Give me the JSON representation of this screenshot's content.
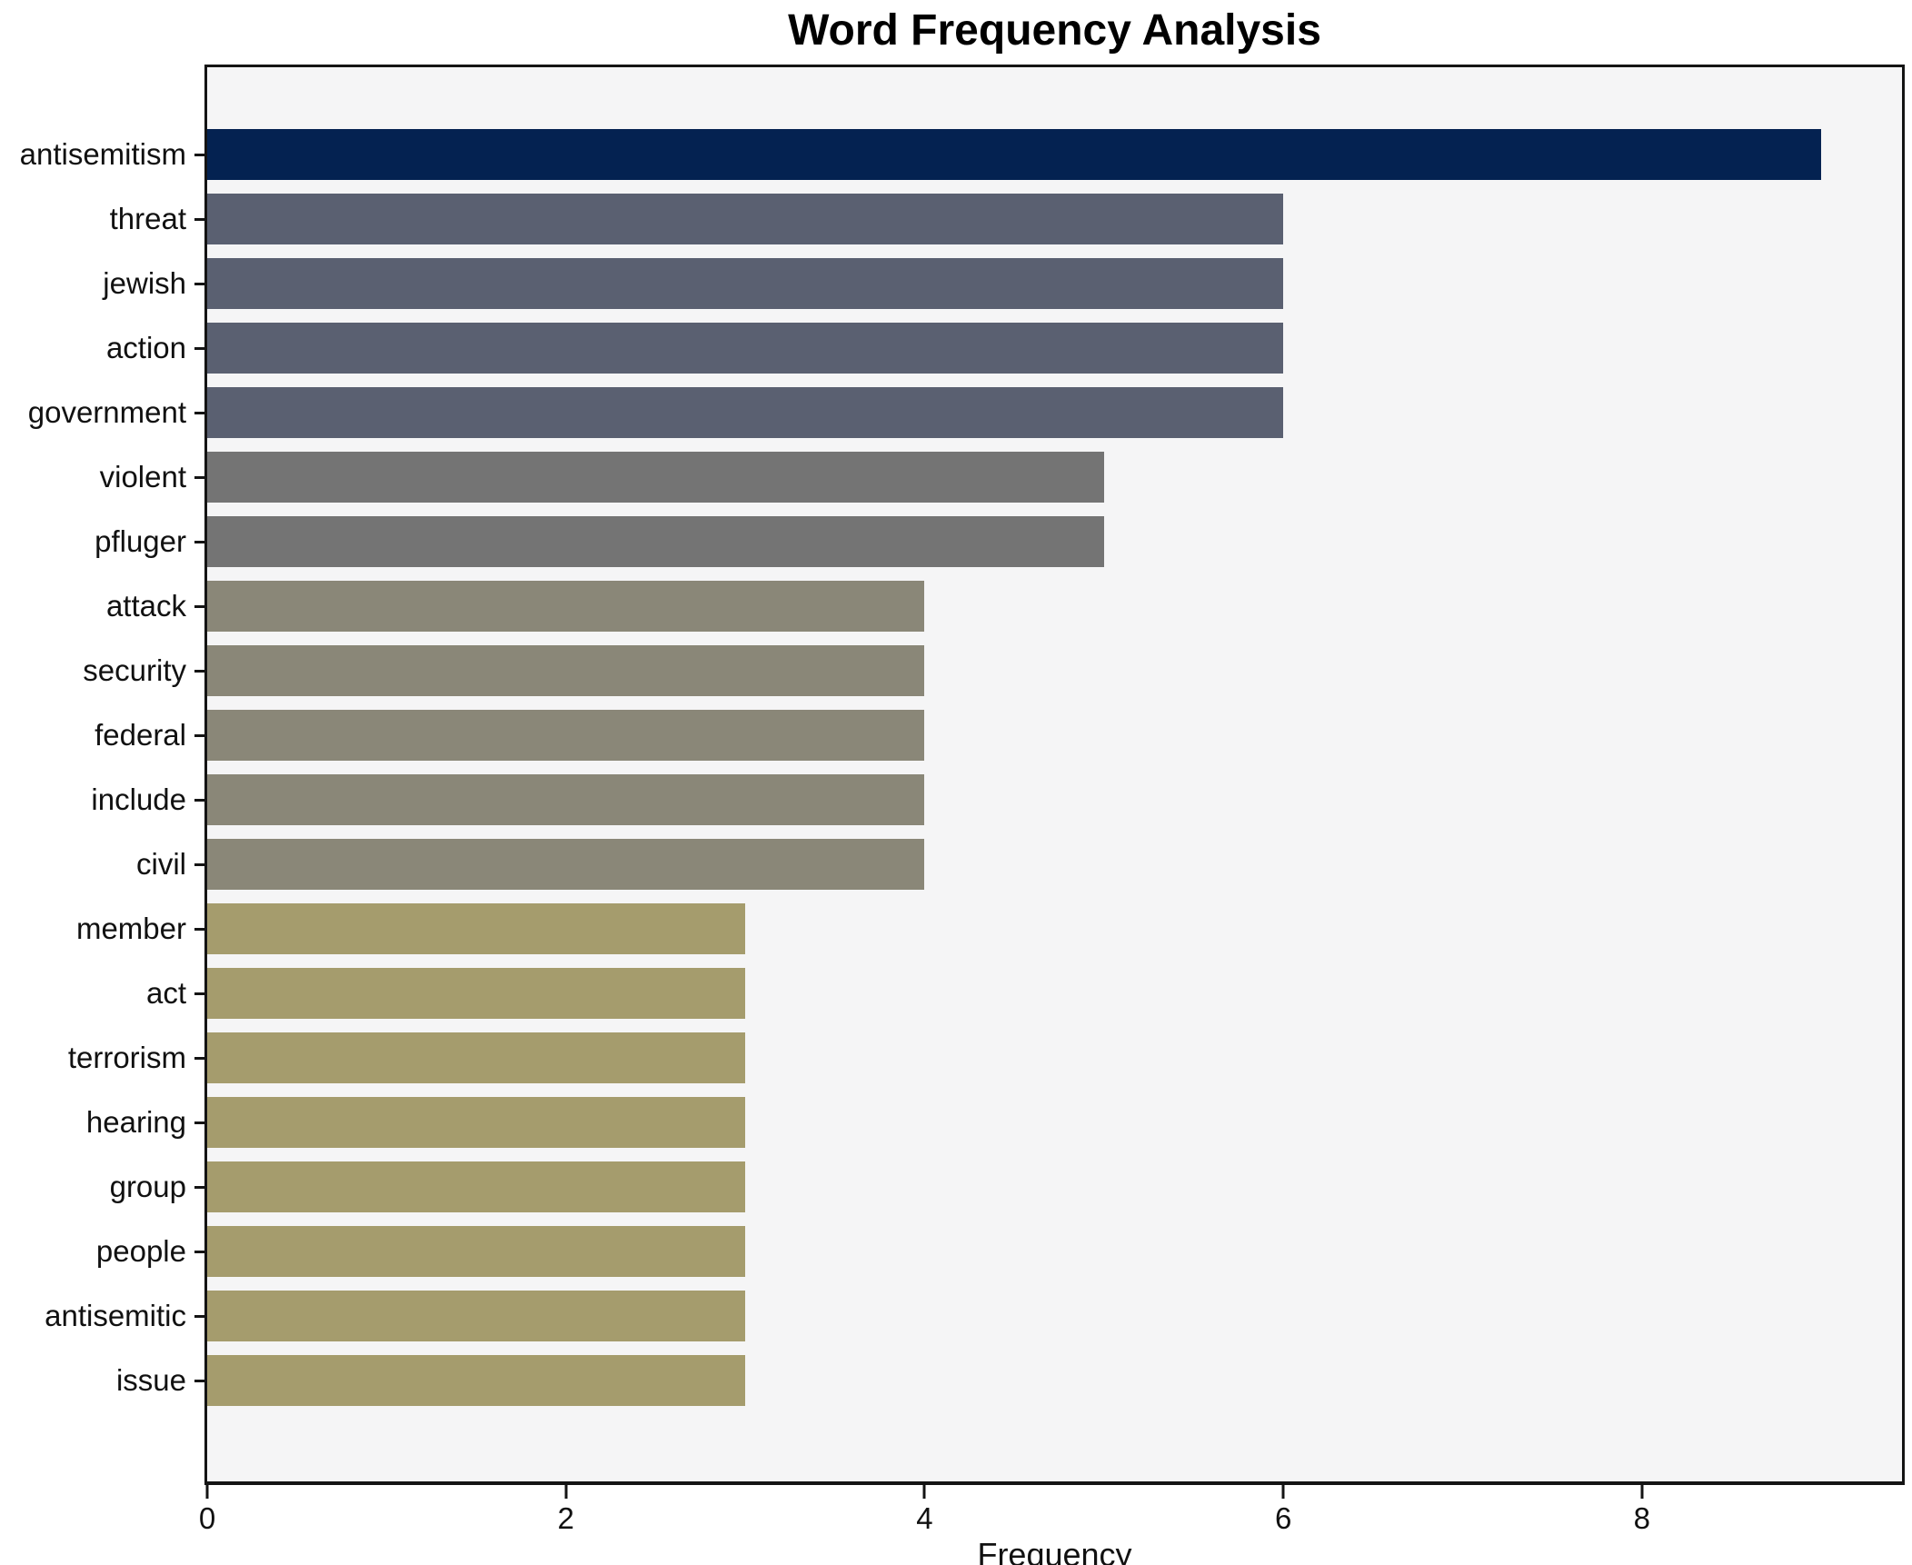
{
  "chart_data": {
    "type": "bar",
    "orientation": "horizontal",
    "title": "Word Frequency Analysis",
    "xlabel": "Frequency",
    "ylabel": "",
    "categories": [
      "antisemitism",
      "threat",
      "jewish",
      "action",
      "government",
      "violent",
      "pfluger",
      "attack",
      "security",
      "federal",
      "include",
      "civil",
      "member",
      "act",
      "terrorism",
      "hearing",
      "group",
      "people",
      "antisemitic",
      "issue"
    ],
    "values": [
      9,
      6,
      6,
      6,
      6,
      5,
      5,
      4,
      4,
      4,
      4,
      4,
      3,
      3,
      3,
      3,
      3,
      3,
      3,
      3
    ],
    "bar_colors": [
      "#042251",
      "#5a6071",
      "#5a6071",
      "#5a6071",
      "#5a6071",
      "#747474",
      "#747474",
      "#8a8778",
      "#8a8778",
      "#8a8778",
      "#8a8778",
      "#8a8778",
      "#a59c6d",
      "#a59c6d",
      "#a59c6d",
      "#a59c6d",
      "#a59c6d",
      "#a59c6d",
      "#a59c6d",
      "#a59c6d"
    ],
    "xticks": [
      0,
      2,
      4,
      6,
      8
    ],
    "xlim": [
      0,
      9.45
    ],
    "grid": false,
    "legend": "none",
    "plot_background": "#f5f5f6",
    "figure_background": "#ffffff",
    "spine_color": "#141414"
  }
}
